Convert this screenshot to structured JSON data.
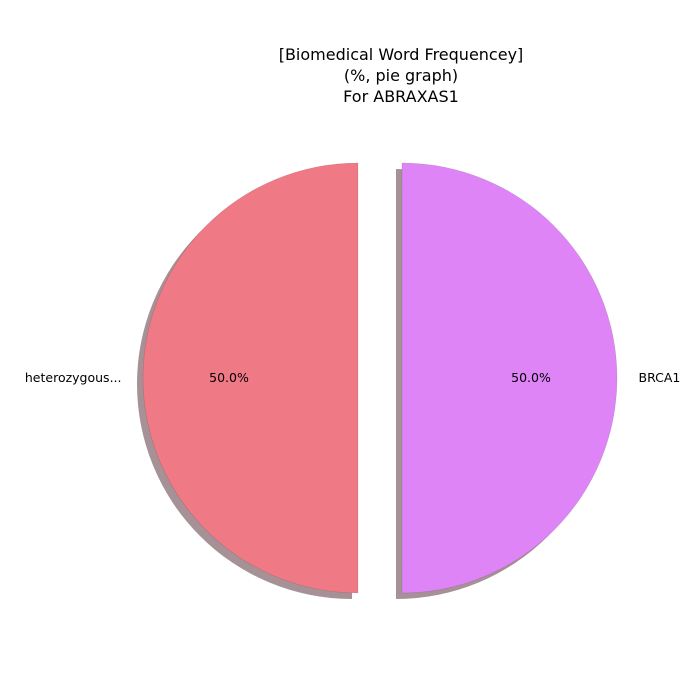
{
  "chart_data": {
    "type": "pie",
    "title_lines": [
      "[Biomedical Word Frequencey]",
      "(%, pie graph)",
      "For ABRAXAS1"
    ],
    "slices": [
      {
        "label": "heterozygous...",
        "value": 50.0,
        "pct_label": "50.0%",
        "color": "#f07986",
        "exploded": true
      },
      {
        "label": "BRCA1",
        "value": 50.0,
        "pct_label": "50.0%",
        "color": "#de84f6",
        "exploded": true
      }
    ],
    "shadow": true,
    "shadow_color": "#a69296"
  }
}
